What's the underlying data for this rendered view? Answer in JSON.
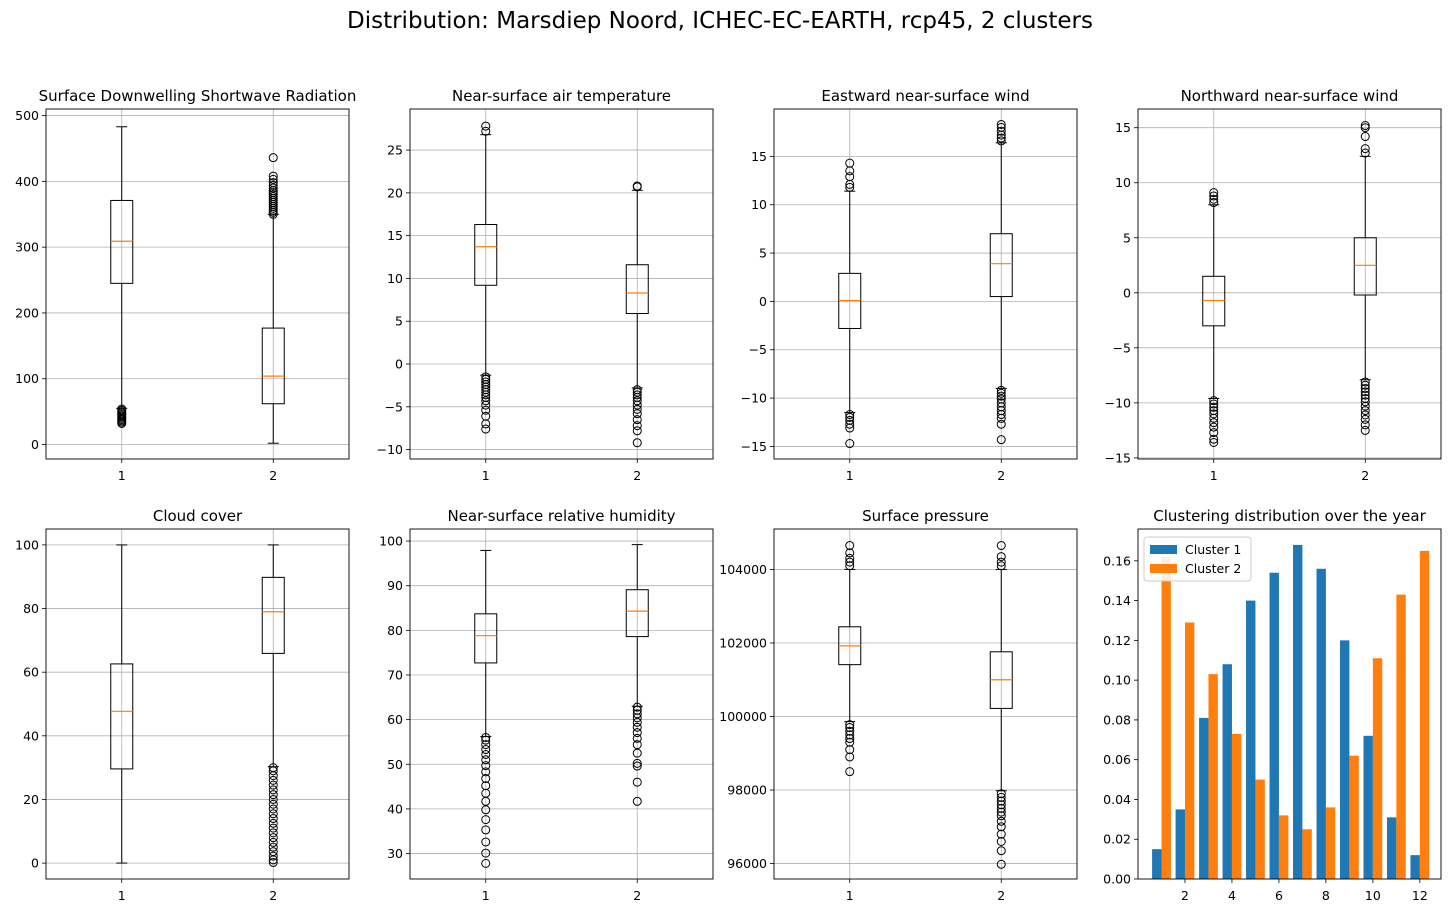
{
  "figure": {
    "suptitle": "Distribution: Marsdiep Noord, ICHEC-EC-EARTH, rcp45, 2 clusters",
    "colors": {
      "median": "#ff7f0e",
      "cluster1": "#1f77b4",
      "cluster2": "#ff7f0e",
      "grid": "#b0b0b0",
      "axes": "#000000"
    }
  },
  "chart_data": [
    {
      "type": "box",
      "title": "Surface Downwelling Shortwave Radiation",
      "grid": true,
      "ylim": [
        -22,
        510
      ],
      "yticks": [
        0,
        100,
        200,
        300,
        400,
        500
      ],
      "yticklabels": [
        "0",
        "100",
        "200",
        "300",
        "400",
        "500"
      ],
      "categories": [
        "1",
        "2"
      ],
      "boxes": [
        {
          "q1": 245,
          "median": 309,
          "q3": 371,
          "whislo": 55,
          "whishi": 483,
          "fliers": [
            32,
            34,
            36,
            38,
            40,
            42,
            44,
            46,
            48,
            50,
            52,
            54
          ]
        },
        {
          "q1": 62,
          "median": 104,
          "q3": 177,
          "whislo": 2,
          "whishi": 350,
          "fliers": [
            350,
            353,
            356,
            359,
            362,
            365,
            368,
            371,
            374,
            377,
            380,
            383,
            386,
            390,
            394,
            398,
            403,
            408,
            436
          ]
        }
      ]
    },
    {
      "type": "box",
      "title": "Near-surface air temperature",
      "grid": true,
      "ylim": [
        -11.1,
        29.8
      ],
      "yticks": [
        -10,
        -5,
        0,
        5,
        10,
        15,
        20,
        25
      ],
      "yticklabels": [
        "−10",
        "−5",
        "0",
        "5",
        "10",
        "15",
        "20",
        "25"
      ],
      "categories": [
        "1",
        "2"
      ],
      "boxes": [
        {
          "q1": 9.2,
          "median": 13.7,
          "q3": 16.3,
          "whislo": -1.3,
          "whishi": 26.8,
          "fliers": [
            27.2,
            27.8,
            -1.5,
            -1.8,
            -2.1,
            -2.4,
            -2.7,
            -3.0,
            -3.3,
            -3.6,
            -3.9,
            -4.3,
            -4.8,
            -5.4,
            -6.1,
            -7.0,
            -7.6
          ]
        },
        {
          "q1": 5.9,
          "median": 8.3,
          "q3": 11.6,
          "whislo": -2.8,
          "whishi": 20.3,
          "fliers": [
            20.7,
            20.8,
            -3.0,
            -3.3,
            -3.6,
            -3.9,
            -4.3,
            -4.8,
            -5.3,
            -5.8,
            -6.5,
            -7.2,
            -7.8,
            -9.2
          ]
        }
      ]
    },
    {
      "type": "box",
      "title": "Eastward near-surface wind",
      "grid": true,
      "ylim": [
        -16.3,
        19.9
      ],
      "yticks": [
        -15,
        -10,
        -5,
        0,
        5,
        10,
        15
      ],
      "yticklabels": [
        "−15",
        "−10",
        "−5",
        "0",
        "5",
        "10",
        "15"
      ],
      "categories": [
        "1",
        "2"
      ],
      "boxes": [
        {
          "q1": -2.8,
          "median": 0.1,
          "q3": 2.9,
          "whislo": -11.5,
          "whishi": 11.4,
          "fliers": [
            11.8,
            12.1,
            12.9,
            13.5,
            14.3,
            -11.7,
            -12.0,
            -12.3,
            -12.7,
            -13.1,
            -14.7
          ]
        },
        {
          "q1": 0.5,
          "median": 3.9,
          "q3": 7.0,
          "whislo": -9.0,
          "whishi": 16.4,
          "fliers": [
            16.6,
            16.9,
            17.2,
            17.6,
            18.0,
            18.3,
            -9.2,
            -9.5,
            -9.8,
            -10.1,
            -10.5,
            -10.9,
            -11.3,
            -11.7,
            -12.1,
            -12.7,
            -14.3
          ]
        }
      ]
    },
    {
      "type": "box",
      "title": "Northward near-surface wind",
      "grid": true,
      "ylim": [
        -15.1,
        16.7
      ],
      "yticks": [
        -15,
        -10,
        -5,
        0,
        5,
        10,
        15
      ],
      "yticklabels": [
        "−15",
        "−10",
        "−5",
        "0",
        "5",
        "10",
        "15"
      ],
      "categories": [
        "1",
        "2"
      ],
      "boxes": [
        {
          "q1": -3.0,
          "median": -0.7,
          "q3": 1.5,
          "whislo": -9.6,
          "whishi": 8.0,
          "fliers": [
            8.2,
            8.5,
            8.8,
            9.1,
            -9.8,
            -10.1,
            -10.4,
            -10.7,
            -11.0,
            -11.4,
            -11.8,
            -12.2,
            -12.7,
            -13.3,
            -13.6
          ]
        },
        {
          "q1": -0.2,
          "median": 2.5,
          "q3": 5.0,
          "whislo": -7.9,
          "whishi": 12.4,
          "fliers": [
            12.7,
            13.1,
            14.2,
            15.0,
            15.2,
            -8.1,
            -8.4,
            -8.7,
            -9.0,
            -9.3,
            -9.6,
            -9.9,
            -10.3,
            -10.7,
            -11.1,
            -11.5,
            -12.0,
            -12.5
          ]
        }
      ]
    },
    {
      "type": "box",
      "title": "Cloud cover",
      "grid": true,
      "ylim": [
        -5,
        105
      ],
      "yticks": [
        0,
        20,
        40,
        60,
        80,
        100
      ],
      "yticklabels": [
        "0",
        "20",
        "40",
        "60",
        "80",
        "100"
      ],
      "categories": [
        "1",
        "2"
      ],
      "boxes": [
        {
          "q1": 29.6,
          "median": 47.7,
          "q3": 62.6,
          "whislo": 0.0,
          "whishi": 100.0,
          "fliers": []
        },
        {
          "q1": 65.9,
          "median": 79.0,
          "q3": 89.8,
          "whislo": 30.3,
          "whishi": 100.0,
          "fliers": [
            0.2,
            1.0,
            2.2,
            3.6,
            5.0,
            6.5,
            8.0,
            9.5,
            11.0,
            12.5,
            14.0,
            15.5,
            17.0,
            18.5,
            20.0,
            21.5,
            23.0,
            24.5,
            26.0,
            27.5,
            29.0,
            30.0
          ]
        }
      ]
    },
    {
      "type": "box",
      "title": "Near-surface relative humidity",
      "grid": true,
      "ylim": [
        24.3,
        102.7
      ],
      "yticks": [
        30,
        40,
        50,
        60,
        70,
        80,
        90,
        100
      ],
      "yticklabels": [
        "30",
        "40",
        "50",
        "60",
        "70",
        "80",
        "90",
        "100"
      ],
      "categories": [
        "1",
        "2"
      ],
      "boxes": [
        {
          "q1": 72.7,
          "median": 78.8,
          "q3": 83.7,
          "whislo": 56.2,
          "whishi": 97.9,
          "fliers": [
            27.8,
            30.1,
            32.6,
            35.3,
            37.6,
            39.8,
            41.7,
            43.5,
            45.2,
            46.8,
            48.3,
            49.7,
            51.0,
            52.2,
            53.3,
            54.4,
            55.4,
            56.0
          ]
        },
        {
          "q1": 78.6,
          "median": 84.3,
          "q3": 89.1,
          "whislo": 63.0,
          "whishi": 99.2,
          "fliers": [
            41.7,
            46.0,
            49.6,
            50.2,
            52.5,
            54.4,
            55.8,
            57.1,
            58.3,
            59.4,
            60.4,
            61.3,
            62.1,
            62.8
          ]
        }
      ]
    },
    {
      "type": "box",
      "title": "Surface pressure",
      "grid": true,
      "ylim": [
        95580,
        105100
      ],
      "yticks": [
        96000,
        98000,
        100000,
        102000,
        104000
      ],
      "yticklabels": [
        "96000",
        "98000",
        "100000",
        "102000",
        "104000"
      ],
      "categories": [
        "1",
        "2"
      ],
      "boxes": [
        {
          "q1": 101410,
          "median": 101920,
          "q3": 102440,
          "whislo": 99860,
          "whishi": 104000,
          "fliers": [
            104100,
            104200,
            104300,
            104450,
            104650,
            99780,
            99700,
            99600,
            99500,
            99400,
            99300,
            99100,
            98900,
            98500
          ]
        },
        {
          "q1": 100220,
          "median": 101000,
          "q3": 101760,
          "whislo": 97980,
          "whishi": 104000,
          "fliers": [
            104100,
            104200,
            104350,
            104650,
            97900,
            97800,
            97700,
            97600,
            97500,
            97400,
            97300,
            97150,
            97000,
            96800,
            96600,
            96350,
            95980
          ]
        }
      ]
    },
    {
      "type": "bar",
      "title": "Clustering distribution over the year",
      "grid": false,
      "legend": "top-left",
      "x": [
        1,
        2,
        3,
        4,
        5,
        6,
        7,
        8,
        9,
        10,
        11,
        12
      ],
      "xlim": [
        0.0,
        12.9
      ],
      "xticks": [
        2,
        4,
        6,
        8,
        10,
        12
      ],
      "xticklabels": [
        "2",
        "4",
        "6",
        "8",
        "10",
        "12"
      ],
      "ylim": [
        0,
        0.176
      ],
      "yticks": [
        0,
        0.02,
        0.04,
        0.06,
        0.08,
        0.1,
        0.12,
        0.14,
        0.16
      ],
      "yticklabels": [
        "0.00",
        "0.02",
        "0.04",
        "0.06",
        "0.08",
        "0.10",
        "0.12",
        "0.14",
        "0.16"
      ],
      "series": [
        {
          "name": "Cluster 1",
          "values": [
            0.015,
            0.035,
            0.081,
            0.108,
            0.14,
            0.154,
            0.168,
            0.156,
            0.12,
            0.072,
            0.031,
            0.012
          ]
        },
        {
          "name": "Cluster 2",
          "values": [
            0.162,
            0.129,
            0.103,
            0.073,
            0.05,
            0.032,
            0.025,
            0.036,
            0.062,
            0.111,
            0.143,
            0.165
          ]
        }
      ]
    }
  ]
}
